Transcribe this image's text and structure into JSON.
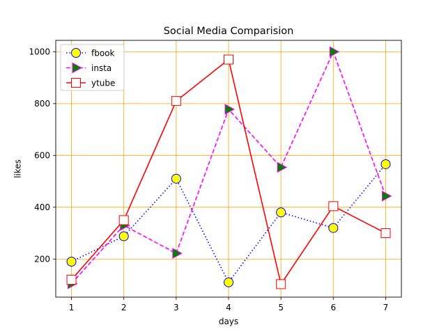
{
  "chart_data": {
    "type": "line",
    "title": "Social Media Comparision",
    "xlabel": "days",
    "ylabel": "likes",
    "x": [
      1,
      2,
      3,
      4,
      5,
      6,
      7
    ],
    "xlim": [
      0.7,
      7.3
    ],
    "ylim": [
      53,
      1044
    ],
    "xticks": [
      1,
      2,
      3,
      4,
      5,
      6,
      7
    ],
    "yticks": [
      200,
      400,
      600,
      800,
      1000
    ],
    "grid": true,
    "grid_color": "#ffa500",
    "legend_position": "top-left",
    "series": [
      {
        "name": "fbook",
        "values": [
          190,
          288,
          510,
          110,
          380,
          320,
          566
        ],
        "line_color": "#0000ff",
        "line_style": "dotted",
        "marker": "circle",
        "marker_face": "#ffff00",
        "marker_edge": "#0000ff"
      },
      {
        "name": "insta",
        "values": [
          105,
          330,
          222,
          778,
          554,
          1000,
          443
        ],
        "line_color": "#ff00ff",
        "line_style": "dashed",
        "marker": "triangle-right",
        "marker_face": "#008000",
        "marker_edge": "#ff00ff"
      },
      {
        "name": "ytube",
        "values": [
          120,
          350,
          810,
          970,
          103,
          404,
          300
        ],
        "line_color": "#ff0000",
        "line_style": "solid",
        "marker": "square",
        "marker_face": "#ffffff",
        "marker_edge": "#ff0000"
      }
    ]
  }
}
